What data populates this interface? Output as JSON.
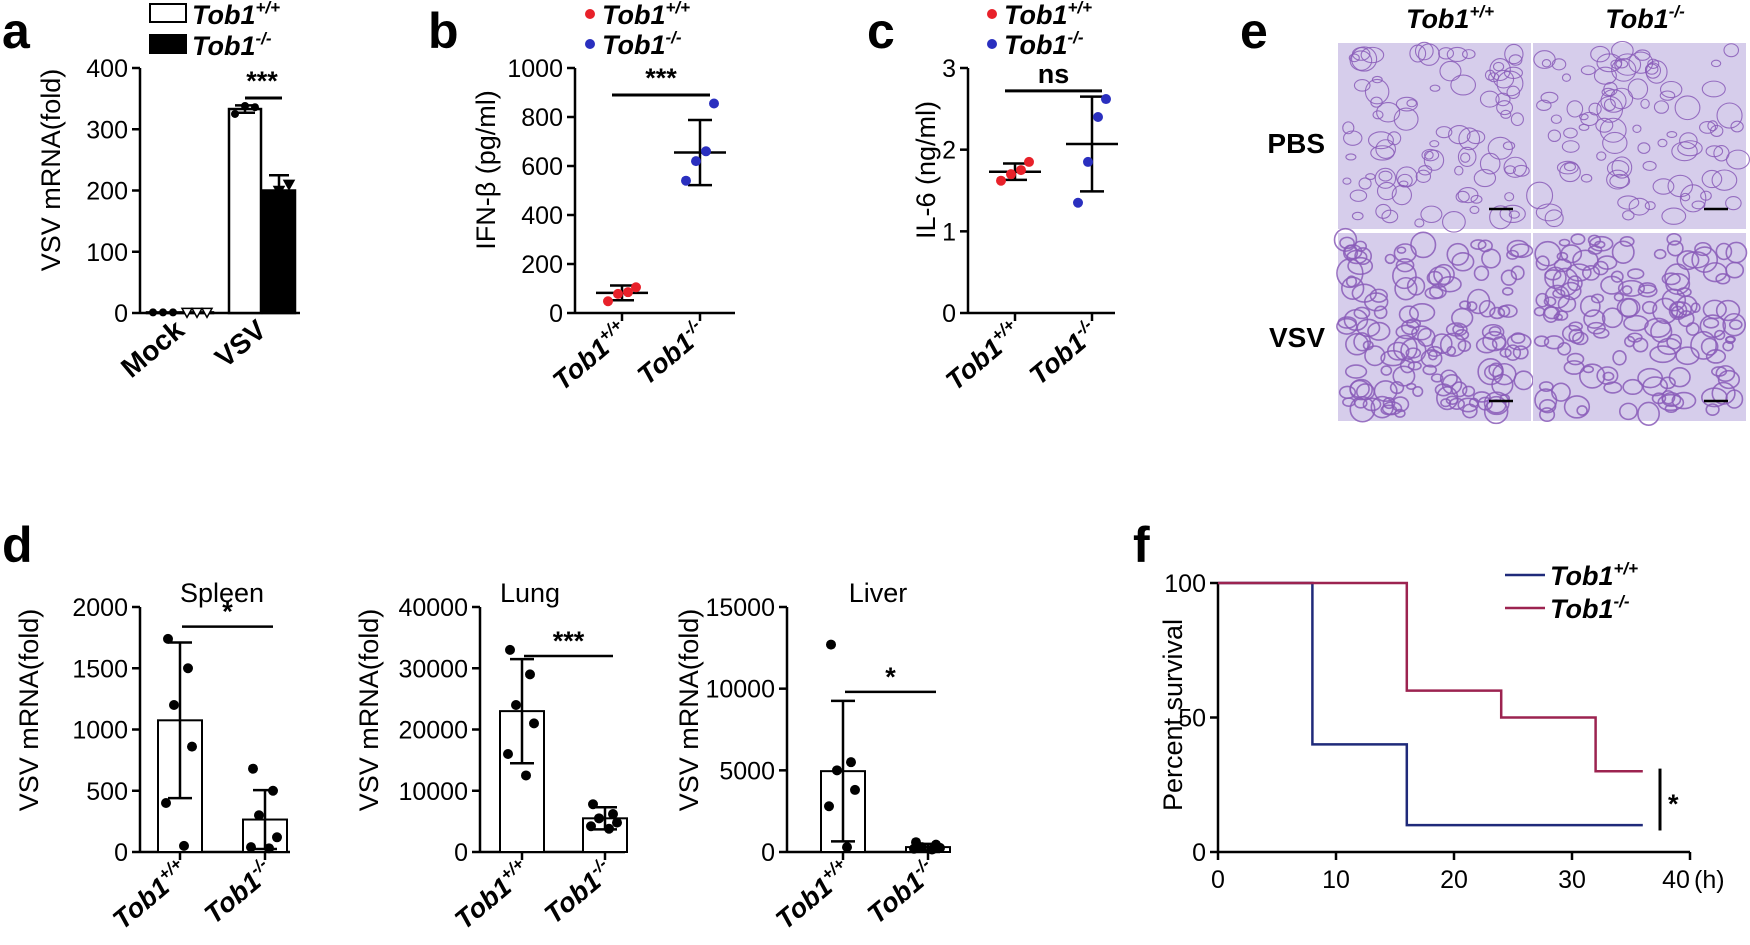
{
  "panel_e": {
    "letter": "e",
    "columns": [
      {
        "base": "Tob1",
        "sup": "+/+"
      },
      {
        "base": "Tob1",
        "sup": "-/-"
      }
    ],
    "rows": [
      "PBS",
      "VSV"
    ]
  },
  "colors": {
    "wt_dot": "#e8212a",
    "ko_dot": "#2a2fbf",
    "wt_line": "#1f2a7a",
    "ko_line": "#9c2350",
    "tissue_bg": "#d6cdeb",
    "tissue_cell": "#8a5cb8"
  },
  "chart_data": [
    {
      "id": "a",
      "letter": "a",
      "type": "bar",
      "ylabel": "VSV mRNA(fold)",
      "ylim": [
        0,
        400
      ],
      "yticks": [
        0,
        100,
        200,
        300,
        400
      ],
      "categories": [
        "Mock",
        "VSV"
      ],
      "legend": [
        {
          "base": "Tob1",
          "sup": "+/+",
          "style": "open"
        },
        {
          "base": "Tob1",
          "sup": "-/-",
          "style": "filled"
        }
      ],
      "series": [
        {
          "group": "Tob1+/+",
          "fill": "open",
          "values": [
            1,
            333
          ],
          "sd": [
            0,
            6
          ],
          "points": [
            [
              1,
              1,
              1
            ],
            [
              325,
              338,
              336
            ]
          ]
        },
        {
          "group": "Tob1-/-",
          "fill": "filled",
          "values": [
            1,
            200
          ],
          "sd": [
            0,
            25
          ],
          "points": [
            [
              1,
              1,
              1
            ],
            [
              190,
              200,
              210
            ]
          ]
        }
      ],
      "significance": [
        {
          "label": "***",
          "category": 1
        }
      ]
    },
    {
      "id": "b",
      "letter": "b",
      "type": "scatter",
      "ylabel": "IFN-β (pg/ml)",
      "ylim": [
        0,
        1000
      ],
      "yticks": [
        0,
        200,
        400,
        600,
        800,
        1000
      ],
      "groups": [
        {
          "base": "Tob1",
          "sup": "+/+",
          "color": "#e8212a",
          "mean": 82,
          "sd": 30,
          "points": [
            48,
            78,
            85,
            105
          ]
        },
        {
          "base": "Tob1",
          "sup": "-/-",
          "color": "#2a2fbf",
          "mean": 655,
          "sd": 133,
          "points": [
            540,
            620,
            660,
            855
          ]
        }
      ],
      "significance": [
        {
          "label": "***",
          "from": 0,
          "to": 1,
          "y": 890
        }
      ]
    },
    {
      "id": "c",
      "letter": "c",
      "type": "scatter",
      "ylabel": "IL-6 (ng/ml)",
      "ylim": [
        0,
        3
      ],
      "yticks": [
        0,
        1,
        2,
        3
      ],
      "groups": [
        {
          "base": "Tob1",
          "sup": "+/+",
          "color": "#e8212a",
          "mean": 1.73,
          "sd": 0.1,
          "points": [
            1.62,
            1.7,
            1.75,
            1.85
          ]
        },
        {
          "base": "Tob1",
          "sup": "-/-",
          "color": "#2a2fbf",
          "mean": 2.07,
          "sd": 0.58,
          "points": [
            1.35,
            1.85,
            2.4,
            2.62
          ]
        }
      ],
      "significance": [
        {
          "label": "ns",
          "from": 0,
          "to": 1,
          "y": 2.72
        }
      ]
    },
    {
      "id": "d1",
      "letter": "d",
      "type": "bar",
      "title": "Spleen",
      "ylabel": "VSV mRNA(fold)",
      "ylim": [
        0,
        2000
      ],
      "yticks": [
        0,
        500,
        1000,
        1500,
        2000
      ],
      "groups": [
        {
          "base": "Tob1",
          "sup": "+/+",
          "mean": 1075,
          "sd": 635,
          "points": [
            1740,
            1500,
            1200,
            860,
            400,
            50
          ]
        },
        {
          "base": "Tob1",
          "sup": "-/-",
          "mean": 265,
          "sd": 240,
          "points": [
            680,
            500,
            300,
            120,
            40,
            30
          ]
        }
      ],
      "significance": [
        {
          "label": "*",
          "from": 0,
          "to": 1,
          "y": 1840
        }
      ]
    },
    {
      "id": "d2",
      "type": "bar",
      "title": "Lung",
      "ylabel": "VSV mRNA(fold)",
      "ylim": [
        0,
        40000
      ],
      "yticks": [
        0,
        10000,
        20000,
        30000,
        40000
      ],
      "groups": [
        {
          "base": "Tob1",
          "sup": "+/+",
          "mean": 23000,
          "sd": 8500,
          "points": [
            33000,
            29000,
            24000,
            21000,
            16000,
            12500
          ]
        },
        {
          "base": "Tob1",
          "sup": "-/-",
          "mean": 5500,
          "sd": 1800,
          "points": [
            7800,
            6200,
            5500,
            4800,
            4200,
            3800
          ]
        }
      ],
      "significance": [
        {
          "label": "***",
          "from": 0,
          "to": 1,
          "y": 32000
        }
      ]
    },
    {
      "id": "d3",
      "type": "bar",
      "title": "Liver",
      "ylabel": "VSV mRNA(fold)",
      "ylim": [
        0,
        15000
      ],
      "yticks": [
        0,
        5000,
        10000,
        15000
      ],
      "groups": [
        {
          "base": "Tob1",
          "sup": "+/+",
          "mean": 4950,
          "sd": 4300,
          "points": [
            12700,
            5500,
            5000,
            3800,
            2800,
            300
          ]
        },
        {
          "base": "Tob1",
          "sup": "-/-",
          "mean": 300,
          "sd": 200,
          "points": [
            600,
            450,
            300,
            250,
            200,
            150
          ]
        }
      ],
      "significance": [
        {
          "label": "*",
          "from": 0,
          "to": 1,
          "y": 9800
        }
      ]
    },
    {
      "id": "f",
      "letter": "f",
      "type": "line",
      "ylabel": "Percent survival",
      "xlabel": "(h)",
      "xlim": [
        0,
        40
      ],
      "ylim": [
        0,
        100
      ],
      "xticks": [
        0,
        10,
        20,
        30,
        40
      ],
      "yticks": [
        0,
        50,
        100
      ],
      "series": [
        {
          "base": "Tob1",
          "sup": "+/+",
          "color": "#1f2a7a",
          "steps": [
            [
              0,
              100
            ],
            [
              8,
              100
            ],
            [
              8,
              40
            ],
            [
              16,
              40
            ],
            [
              16,
              10
            ],
            [
              36,
              10
            ]
          ]
        },
        {
          "base": "Tob1",
          "sup": "-/-",
          "color": "#9c2350",
          "steps": [
            [
              0,
              100
            ],
            [
              16,
              100
            ],
            [
              16,
              60
            ],
            [
              24,
              60
            ],
            [
              24,
              50
            ],
            [
              32,
              50
            ],
            [
              32,
              30
            ],
            [
              36,
              30
            ]
          ]
        }
      ],
      "significance": [
        {
          "label": "*"
        }
      ]
    }
  ]
}
